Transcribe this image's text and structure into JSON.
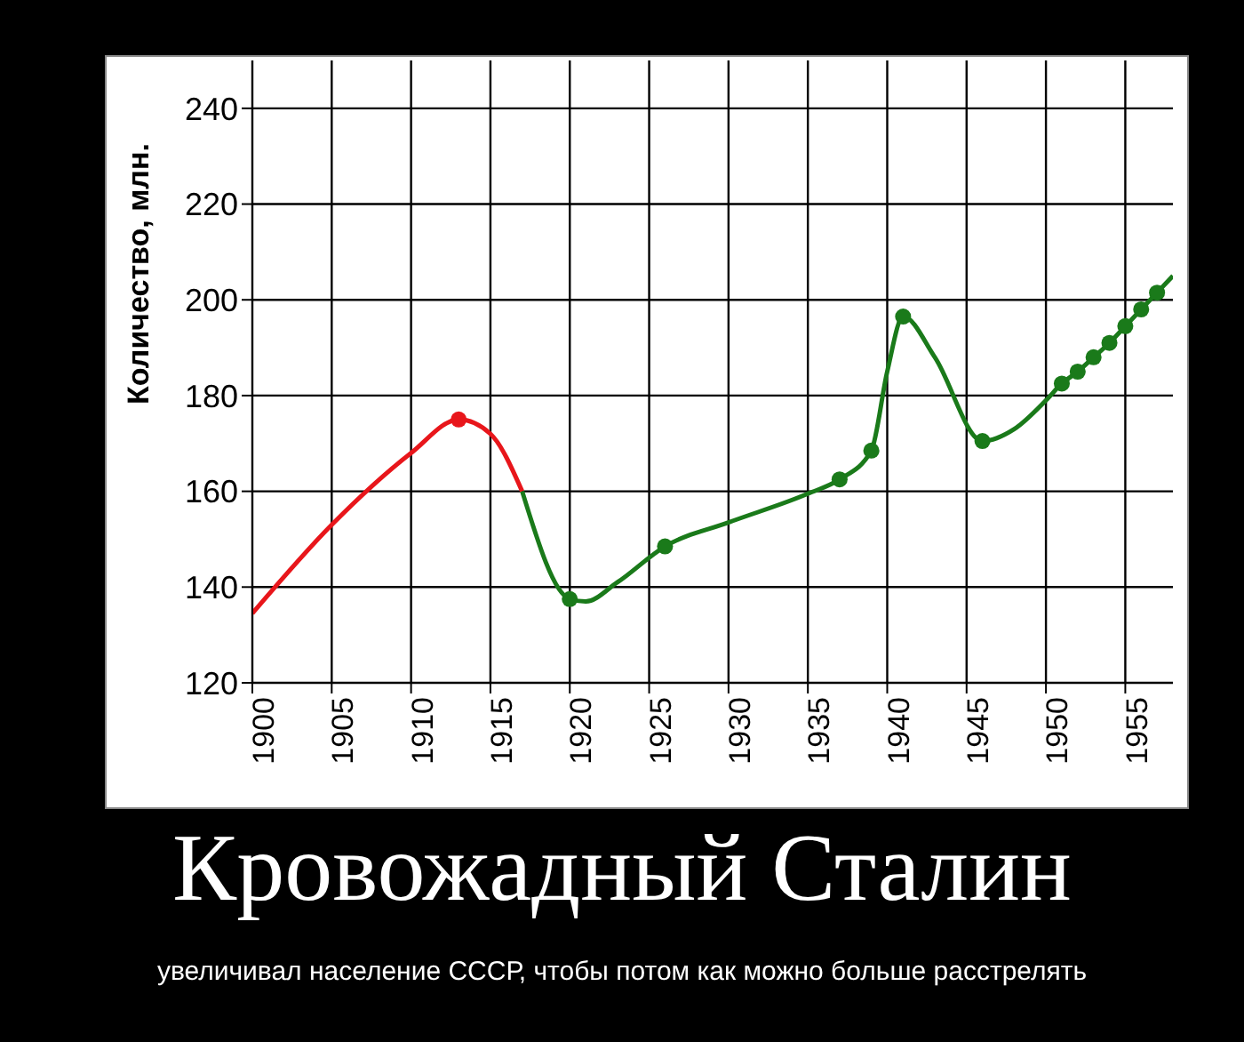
{
  "chart_data": {
    "type": "line",
    "title": "Кровожадный Сталин",
    "subtitle": "увеличивал население СССР, чтобы потом как можно больше расстрелять",
    "ylabel": "Количество, млн.",
    "xlim": [
      1900,
      1958
    ],
    "xticks": [
      1900,
      1905,
      1910,
      1915,
      1920,
      1925,
      1930,
      1935,
      1940,
      1945,
      1950,
      1955
    ],
    "ylim": [
      120,
      250
    ],
    "yticks": [
      120,
      140,
      160,
      180,
      200,
      220,
      240
    ],
    "grid": true,
    "line_style": "solid",
    "series": [
      {
        "type": "line",
        "color": "#e8161b",
        "marker": "none",
        "x": [
          1900,
          1905,
          1910,
          1913,
          1915,
          1917
        ],
        "values": [
          134.5,
          153,
          168,
          175,
          172,
          160
        ]
      },
      {
        "type": "line",
        "color": "#1a7a1a",
        "marker": "none",
        "x": [
          1917,
          1920,
          1921,
          1923,
          1926,
          1930,
          1935,
          1937,
          1939,
          1940,
          1941,
          1943,
          1946,
          1948,
          1950,
          1951,
          1952,
          1953,
          1954,
          1955,
          1956,
          1957,
          1958
        ],
        "values": [
          160,
          137.5,
          137,
          141,
          148.5,
          153.5,
          159.5,
          162.5,
          168.5,
          185,
          196.5,
          188,
          170.5,
          173,
          179,
          182.5,
          185,
          188,
          191,
          194.5,
          198,
          201.5,
          205
        ]
      },
      {
        "type": "scatter",
        "color": "#e8161b",
        "marker": "circle",
        "x": [
          1913
        ],
        "values": [
          175
        ]
      },
      {
        "type": "scatter",
        "color": "#1a7a1a",
        "marker": "circle",
        "x": [
          1920,
          1926,
          1937,
          1939,
          1941,
          1946,
          1951,
          1952,
          1953,
          1954,
          1955,
          1956,
          1957
        ],
        "values": [
          137.5,
          148.5,
          162.5,
          168.5,
          196.5,
          170.5,
          182.5,
          185,
          188,
          191,
          194.5,
          198,
          201.5
        ]
      }
    ]
  }
}
